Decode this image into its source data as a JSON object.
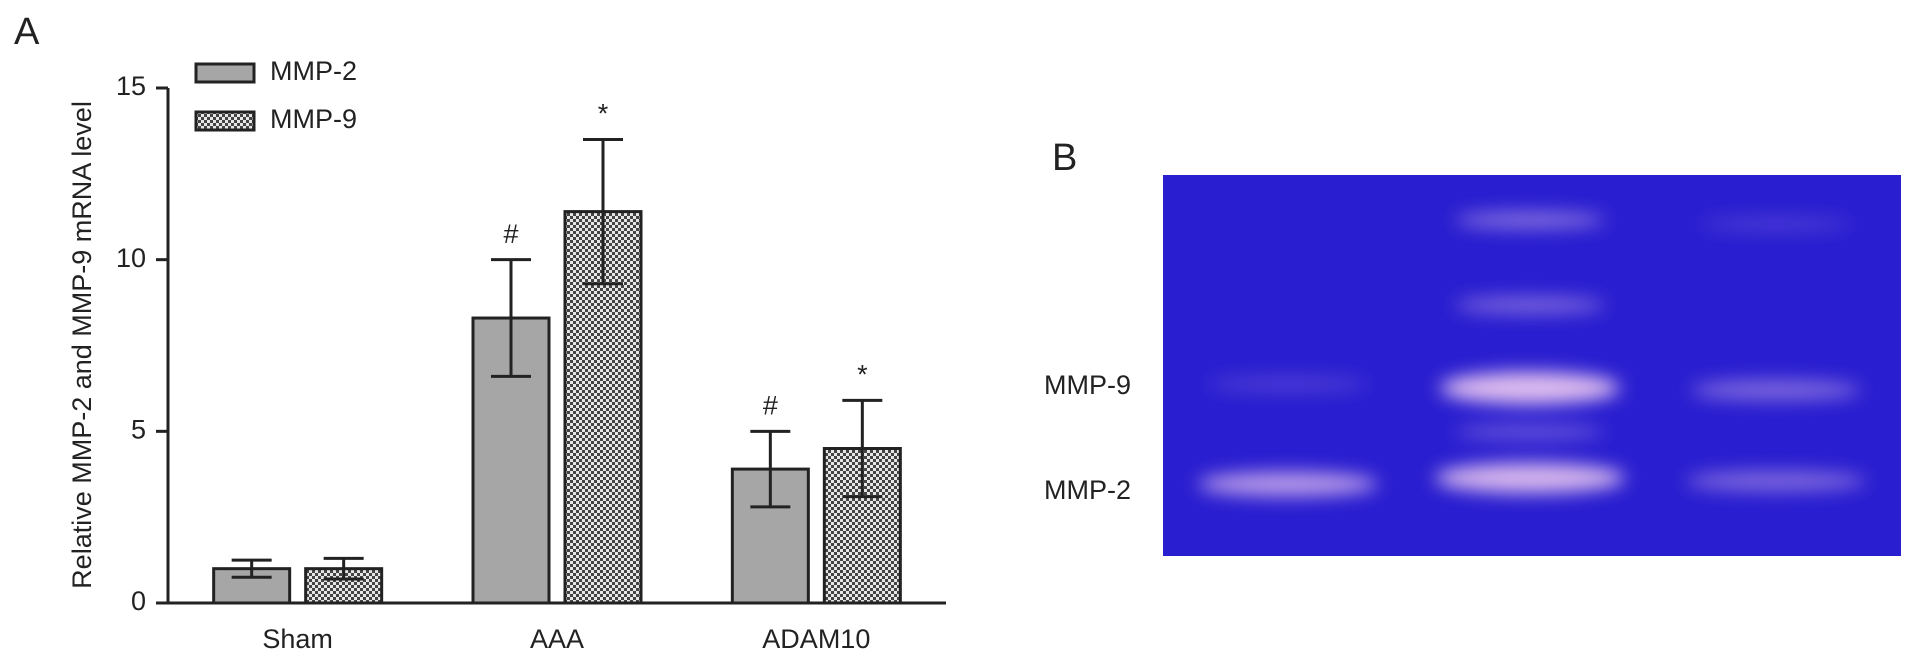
{
  "panel_a_label": "A",
  "panel_b_label": "B",
  "chart_data": {
    "type": "bar",
    "ylabel": "Relative MMP-2 and MMP-9 mRNA level",
    "categories": [
      "Sham",
      "AAA",
      "ADAM10"
    ],
    "series": [
      {
        "name": "MMP-2",
        "color": "#a6a6a6",
        "values": [
          1.0,
          8.3,
          3.9
        ],
        "errors": [
          0.25,
          1.7,
          1.1
        ],
        "markers": [
          null,
          "#",
          "#"
        ]
      },
      {
        "name": "MMP-9",
        "color": "#cfcfcf",
        "pattern": "checker",
        "values": [
          1.0,
          11.4,
          4.5
        ],
        "errors": [
          0.3,
          2.1,
          1.4
        ],
        "markers": [
          null,
          "*",
          "*"
        ]
      }
    ],
    "ylim": [
      0,
      15
    ],
    "yticks": [
      0,
      5,
      10,
      15
    ],
    "legend": "upper left",
    "grid": false
  },
  "gel": {
    "labels": [
      "MMP-9",
      "MMP-2"
    ]
  }
}
